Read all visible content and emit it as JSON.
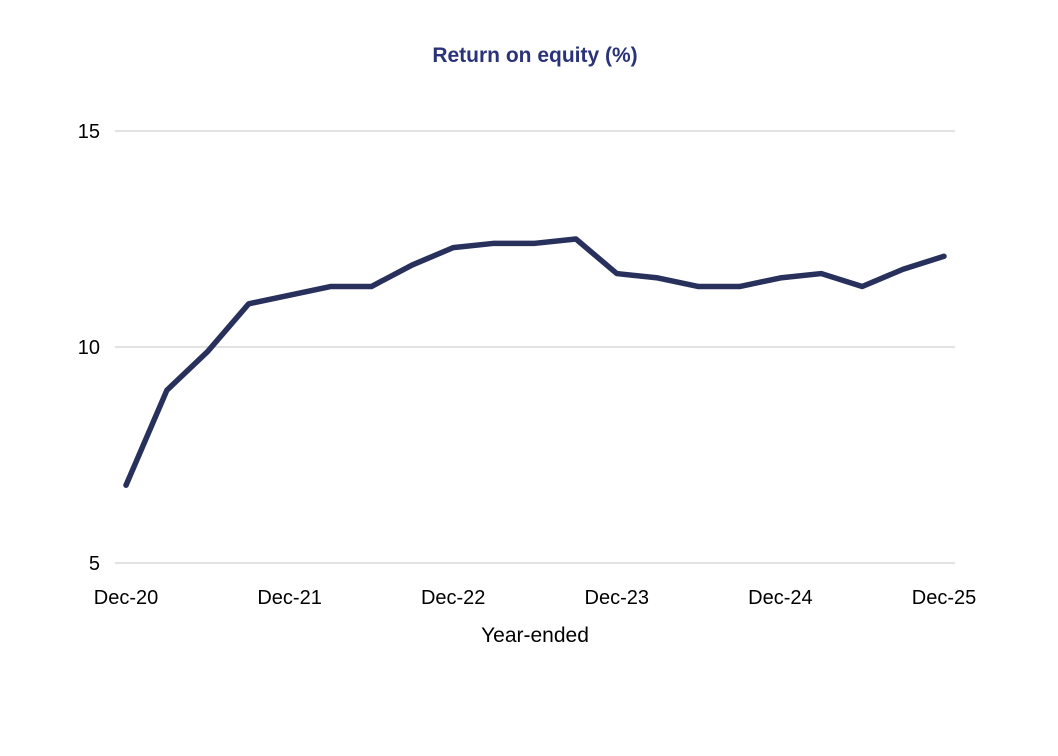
{
  "chart_data": {
    "type": "line",
    "title": "Return on equity (%)",
    "xlabel": "Year-ended",
    "ylabel": "",
    "series": [
      {
        "name": "Return on equity",
        "x": [
          "Dec-20",
          "Mar-21",
          "Jun-21",
          "Sep-21",
          "Dec-21",
          "Mar-22",
          "Jun-22",
          "Sep-22",
          "Dec-22",
          "Mar-23",
          "Jun-23",
          "Sep-23",
          "Dec-23",
          "Mar-24",
          "Jun-24",
          "Sep-24",
          "Dec-24",
          "Mar-25",
          "Jun-25",
          "Sep-25",
          "Dec-25"
        ],
        "values": [
          6.8,
          9.0,
          9.9,
          11.0,
          11.2,
          11.4,
          11.4,
          11.9,
          12.3,
          12.4,
          12.4,
          12.5,
          11.7,
          11.6,
          11.4,
          11.4,
          11.6,
          11.7,
          11.4,
          11.8,
          12.1
        ]
      }
    ],
    "x_tick_labels_shown": [
      "Dec-20",
      "Dec-21",
      "Dec-22",
      "Dec-23",
      "Dec-24",
      "Dec-25"
    ],
    "y_tick_labels_shown": [
      "5",
      "10",
      "15"
    ],
    "yticks": [
      5,
      10,
      15
    ],
    "ylim": [
      5,
      15
    ],
    "grid": "horizontal-only",
    "legend_position": "none",
    "colors": {
      "line": "#28305C",
      "title": "#2A3378",
      "gridline": "#D9D9D9",
      "tick_text": "#000000",
      "background": "#FFFFFF"
    }
  }
}
